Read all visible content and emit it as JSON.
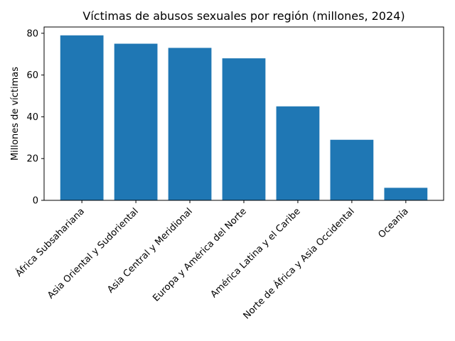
{
  "chart_data": {
    "type": "bar",
    "title": "Víctimas de abusos sexuales por región (millones, 2024)",
    "xlabel": "",
    "ylabel": "Millones de víctimas",
    "categories": [
      "África Subsahariana",
      "Asia Oriental y Sudoriental",
      "Asia Central y Meridional",
      "Europa y América del Norte",
      "América Latina y el Caribe",
      "Norte de África y Asia Occidental",
      "Oceanía"
    ],
    "values": [
      79,
      75,
      73,
      68,
      45,
      29,
      6
    ],
    "ylim": [
      0,
      83
    ],
    "yticks": [
      0,
      20,
      40,
      60,
      80
    ],
    "bar_color": "#1f77b4",
    "grid": false,
    "legend": "none"
  }
}
